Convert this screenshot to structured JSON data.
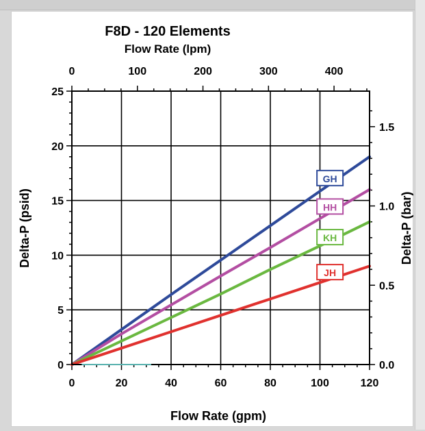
{
  "chart_data": {
    "type": "line",
    "title": "F8D - 120 Elements",
    "xlabel": "Flow Rate (gpm)",
    "ylabel": "Delta-P (psid)",
    "x2label": "Flow Rate (lpm)",
    "y2label": "Delta-P (bar)",
    "xlim": [
      0,
      120
    ],
    "ylim": [
      0,
      25
    ],
    "x2lim": [
      0,
      454.2
    ],
    "y2lim": [
      0,
      1.724
    ],
    "grid": true,
    "x_ticks": [
      0,
      20,
      40,
      60,
      80,
      100,
      120
    ],
    "y_ticks": [
      0,
      5,
      10,
      15,
      20,
      25
    ],
    "x2_ticks": [
      0,
      100,
      200,
      300,
      400
    ],
    "y2_ticks": [
      0.0,
      0.5,
      1.0,
      1.5
    ],
    "x_tick_labels": [
      "0",
      "20",
      "40",
      "60",
      "80",
      "100",
      "120"
    ],
    "y_tick_labels": [
      "0",
      "5",
      "10",
      "15",
      "20",
      "25"
    ],
    "x2_tick_labels": [
      "0",
      "100",
      "200",
      "300",
      "400"
    ],
    "y2_tick_labels": [
      "0.0",
      "0.5",
      "1.0",
      "1.5"
    ],
    "series": [
      {
        "name": "GH",
        "color": "#2e4a9a",
        "label_x": 101,
        "label_y": 16.8,
        "x": [
          0,
          20,
          40,
          60,
          80,
          100,
          120
        ],
        "y": [
          0,
          3.2,
          6.4,
          9.55,
          12.7,
          15.85,
          19.0
        ]
      },
      {
        "name": "HH",
        "color": "#b34ea2",
        "label_x": 101,
        "label_y": 14.2,
        "x": [
          0,
          20,
          40,
          60,
          80,
          100,
          120
        ],
        "y": [
          0,
          2.8,
          5.45,
          8.1,
          10.7,
          13.35,
          16.0
        ]
      },
      {
        "name": "KH",
        "color": "#6ab840",
        "label_x": 101,
        "label_y": 11.4,
        "x": [
          0,
          20,
          40,
          60,
          80,
          100,
          120
        ],
        "y": [
          0,
          2.15,
          4.3,
          6.45,
          8.7,
          10.85,
          13.05
        ]
      },
      {
        "name": "JH",
        "color": "#e0312e",
        "label_x": 101,
        "label_y": 8.2,
        "x": [
          0,
          20,
          40,
          60,
          80,
          100,
          120
        ],
        "y": [
          0,
          1.5,
          3.0,
          4.5,
          6.0,
          7.5,
          9.0
        ]
      }
    ]
  }
}
